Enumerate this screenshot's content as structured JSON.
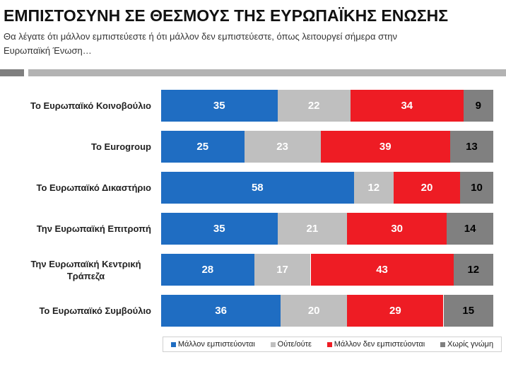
{
  "chart_data": {
    "type": "bar",
    "orientation": "horizontal",
    "stacked": true,
    "title": "ΕΜΠΙΣΤΟΣΥΝΗ ΣΕ ΘΕΣΜΟΥΣ ΤΗΣ ΕΥΡΩΠΑΪΚΗΣ ΕΝΩΣΗΣ",
    "subtitle_lines": [
      "Θα λέγατε ότι μάλλον εμπιστεύεστε ή ότι μάλλον δεν εμπιστεύεστε, όπως λειτουργεί σήμερα στην",
      "Ευρωπαϊκή Ένωση…"
    ],
    "categories": [
      "Το Ευρωπαϊκό Κοινοβούλιο",
      "Το Eurogroup",
      "Το Ευρωπαϊκό Δικαστήριο",
      "Την Ευρωπαϊκή Επιτροπή",
      "Την Ευρωπαϊκή Κεντρική Τράπεζα",
      "Το Ευρωπαϊκό Συμβούλιο"
    ],
    "series": [
      {
        "name": "Μάλλον εμπιστεύονται",
        "values": [
          35,
          25,
          58,
          35,
          28,
          36
        ],
        "color": "#1F6DC2",
        "label_color": "#ffffff"
      },
      {
        "name": "Ούτε/ούτε",
        "values": [
          22,
          23,
          12,
          21,
          17,
          20
        ],
        "color": "#BFBFBF",
        "label_color": "#ffffff"
      },
      {
        "name": "Μάλλον δεν εμπιστεύονται",
        "values": [
          34,
          39,
          20,
          30,
          43,
          29
        ],
        "color": "#EE1C24",
        "label_color": "#ffffff"
      },
      {
        "name": "Χωρίς γνώμη",
        "values": [
          9,
          13,
          10,
          14,
          12,
          15
        ],
        "color": "#808080",
        "label_color": "#000000"
      }
    ],
    "xlim": [
      0,
      100
    ],
    "data_labels": true,
    "grid": false,
    "legend_position": "bottom-right"
  }
}
